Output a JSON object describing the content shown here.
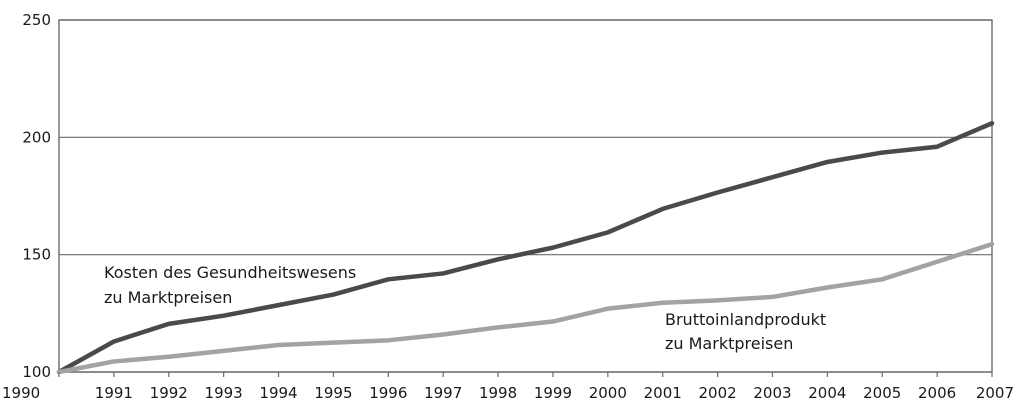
{
  "chart_data": {
    "type": "line",
    "x": [
      1990,
      1991,
      1992,
      1993,
      1994,
      1995,
      1996,
      1997,
      1998,
      1999,
      2000,
      2001,
      2002,
      2003,
      2004,
      2005,
      2006,
      2007
    ],
    "ylim": [
      100,
      250
    ],
    "yticks": [
      100,
      150,
      200,
      250
    ],
    "grid": "horizontal",
    "series": [
      {
        "color": "#4a4a4a",
        "values": [
          100,
          113,
          120.5,
          124,
          128.5,
          133,
          139.5,
          142,
          148,
          153,
          159.5,
          169.5,
          176.5,
          183,
          189.5,
          193.5,
          196,
          206
        ]
      },
      {
        "color": "#a3a3a3",
        "values": [
          100,
          104.5,
          106.5,
          109,
          111.5,
          112.5,
          113.5,
          116,
          119,
          121.5,
          127,
          129.5,
          130.5,
          132,
          136,
          139.5,
          147,
          154.5
        ]
      }
    ],
    "annotations": [
      {
        "lines": [
          "Kosten des Gesundheitswesens",
          "zu Marktpreisen"
        ]
      },
      {
        "lines": [
          "Bruttoinlandprodukt",
          "zu Marktpreisen"
        ]
      }
    ]
  }
}
